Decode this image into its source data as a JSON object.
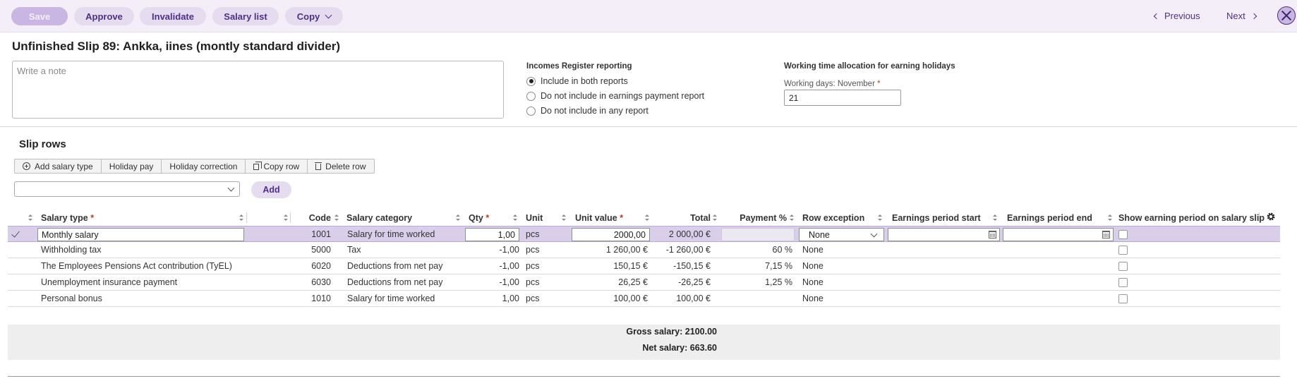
{
  "toolbar": {
    "save": "Save",
    "approve": "Approve",
    "invalidate": "Invalidate",
    "salary_list": "Salary list",
    "copy": "Copy",
    "previous": "Previous",
    "next": "Next"
  },
  "page_title": "Unfinished Slip 89: Ankka, iines (montly standard divider)",
  "note": {
    "placeholder": "Write a note",
    "value": ""
  },
  "incomes_register": {
    "title": "Incomes Register reporting",
    "options": [
      {
        "label": "Include in both reports",
        "selected": true
      },
      {
        "label": "Do not include in earnings payment report",
        "selected": false
      },
      {
        "label": "Do not include in any report",
        "selected": false
      }
    ]
  },
  "working_time": {
    "title": "Working time allocation for earning holidays",
    "label": "Working days: November",
    "required_mark": "*",
    "value": "21"
  },
  "slip_rows": {
    "title": "Slip rows",
    "buttons": {
      "add_salary_type": "Add salary type",
      "holiday_pay": "Holiday pay",
      "holiday_correction": "Holiday correction",
      "copy_row": "Copy row",
      "delete_row": "Delete row"
    },
    "add_select_value": "",
    "add_button": "Add"
  },
  "table": {
    "headers": {
      "salary_type": "Salary type",
      "code": "Code",
      "salary_category": "Salary category",
      "qty": "Qty",
      "unit": "Unit",
      "unit_value": "Unit value",
      "total": "Total",
      "payment_pct": "Payment %",
      "row_exception": "Row exception",
      "earnings_start": "Earnings period start",
      "earnings_end": "Earnings period end",
      "show_period": "Show earning period on salary slip"
    },
    "required_mark": "*",
    "rows": [
      {
        "salary_type": "Monthly salary",
        "code": "1001",
        "category": "Salary for time worked",
        "qty": "1,00",
        "unit": "pcs",
        "unit_value": "2000,00",
        "total": "2 000,00 €",
        "payment_pct": "",
        "row_exception": "None",
        "earnings_start": "",
        "earnings_end": "",
        "show_period": false,
        "selected": true
      },
      {
        "salary_type": "Withholding tax",
        "code": "5000",
        "category": "Tax",
        "qty": "-1,00",
        "unit": "pcs",
        "unit_value": "1 260,00 €",
        "total": "-1 260,00 €",
        "payment_pct": "60 %",
        "row_exception": "None",
        "earnings_start": "",
        "earnings_end": "",
        "show_period": false,
        "selected": false
      },
      {
        "salary_type": "The Employees Pensions Act contribution (TyEL)",
        "code": "6020",
        "category": "Deductions from net pay",
        "qty": "-1,00",
        "unit": "pcs",
        "unit_value": "150,15 €",
        "total": "-150,15 €",
        "payment_pct": "7,15 %",
        "row_exception": "None",
        "earnings_start": "",
        "earnings_end": "",
        "show_period": false,
        "selected": false
      },
      {
        "salary_type": "Unemployment insurance payment",
        "code": "6030",
        "category": "Deductions from net pay",
        "qty": "-1,00",
        "unit": "pcs",
        "unit_value": "26,25 €",
        "total": "-26,25 €",
        "payment_pct": "1,25 %",
        "row_exception": "None",
        "earnings_start": "",
        "earnings_end": "",
        "show_period": false,
        "selected": false
      },
      {
        "salary_type": "Personal bonus",
        "code": "1010",
        "category": "Salary for time worked",
        "qty": "1,00",
        "unit": "pcs",
        "unit_value": "100,00 €",
        "total": "100,00 €",
        "payment_pct": "",
        "row_exception": "None",
        "earnings_start": "",
        "earnings_end": "",
        "show_period": false,
        "selected": false
      }
    ]
  },
  "totals": {
    "gross": "Gross salary: 2100.00",
    "net": "Net salary: 663.60"
  },
  "colors": {
    "accent": "#4e2f87",
    "pill_bg": "#e6dcf0",
    "selected_row": "#d9cfeb"
  }
}
